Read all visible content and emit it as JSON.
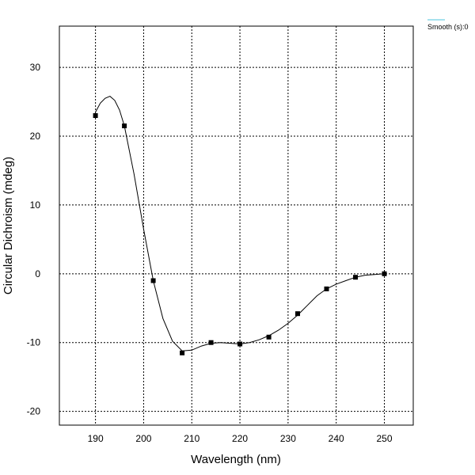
{
  "chart_data": {
    "type": "line",
    "xlabel": "Wavelength (nm)",
    "ylabel": "Circular Dichroism  (mdeg)",
    "xlim": [
      182.5,
      256
    ],
    "ylim": [
      -22,
      36
    ],
    "x_ticks": [
      190,
      200,
      210,
      220,
      230,
      240,
      250
    ],
    "y_ticks": [
      -20,
      -10,
      0,
      10,
      20,
      30
    ],
    "grid": true,
    "legend": {
      "label": "Smooth (s):0",
      "color": "#88d8e8",
      "placement": "top-right outside"
    },
    "series": [
      {
        "curve_x": [
          190,
          191,
          192,
          193,
          194,
          195,
          196,
          198,
          200,
          202,
          204,
          206,
          208,
          210,
          212,
          214,
          216,
          218,
          220,
          222,
          224,
          226,
          228,
          230,
          232,
          234,
          236,
          238,
          240,
          242,
          244,
          246,
          248,
          250
        ],
        "curve_y": [
          23.5,
          24.8,
          25.5,
          25.8,
          25.2,
          23.8,
          21.5,
          14.5,
          6.5,
          -1,
          -6.5,
          -9.8,
          -11.2,
          -11.1,
          -10.5,
          -10.1,
          -10.0,
          -10.1,
          -10.2,
          -10.0,
          -9.6,
          -9.0,
          -8.2,
          -7.2,
          -6.0,
          -4.6,
          -3.2,
          -2.2,
          -1.5,
          -1.0,
          -0.5,
          -0.2,
          -0.1,
          0.0
        ],
        "color": "#000000"
      },
      {
        "marker_x": [
          190,
          196,
          202,
          208,
          214,
          220,
          226,
          232,
          238,
          244,
          250
        ],
        "marker_y": [
          23,
          21.5,
          -1,
          -11.5,
          -10,
          -10.2,
          -9.2,
          -5.8,
          -2.2,
          -0.5,
          0
        ],
        "marker": "square",
        "color": "#000000"
      }
    ]
  }
}
